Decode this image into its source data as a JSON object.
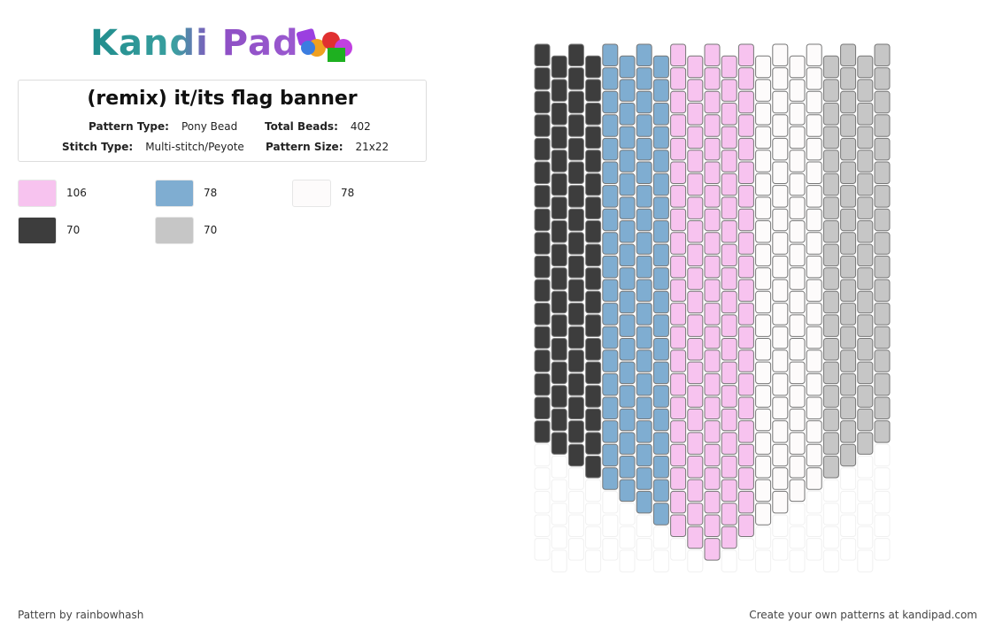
{
  "header": {
    "logo": "Kandi Pad"
  },
  "pattern": {
    "title": "(remix) it/its flag banner",
    "details": [
      {
        "label": "Pattern Type:",
        "value": "Pony Bead"
      },
      {
        "label": "Total Beads:",
        "value": "402"
      },
      {
        "label": "Stitch Type:",
        "value": "Multi-stitch/Peyote"
      },
      {
        "label": "Pattern Size:",
        "value": "21x22"
      }
    ]
  },
  "colors": [
    {
      "color": "#f7c3ef",
      "count": 106
    },
    {
      "color": "#7fadd1",
      "count": 78
    },
    {
      "color": "#fdfbfb",
      "count": 78
    },
    {
      "color": "#3d3d3d",
      "count": 70
    },
    {
      "color": "#c6c6c6",
      "count": 70
    }
  ],
  "footer": {
    "author": "Pattern by rainbowhash",
    "cta": "Create your own patterns at kandipad.com"
  }
}
